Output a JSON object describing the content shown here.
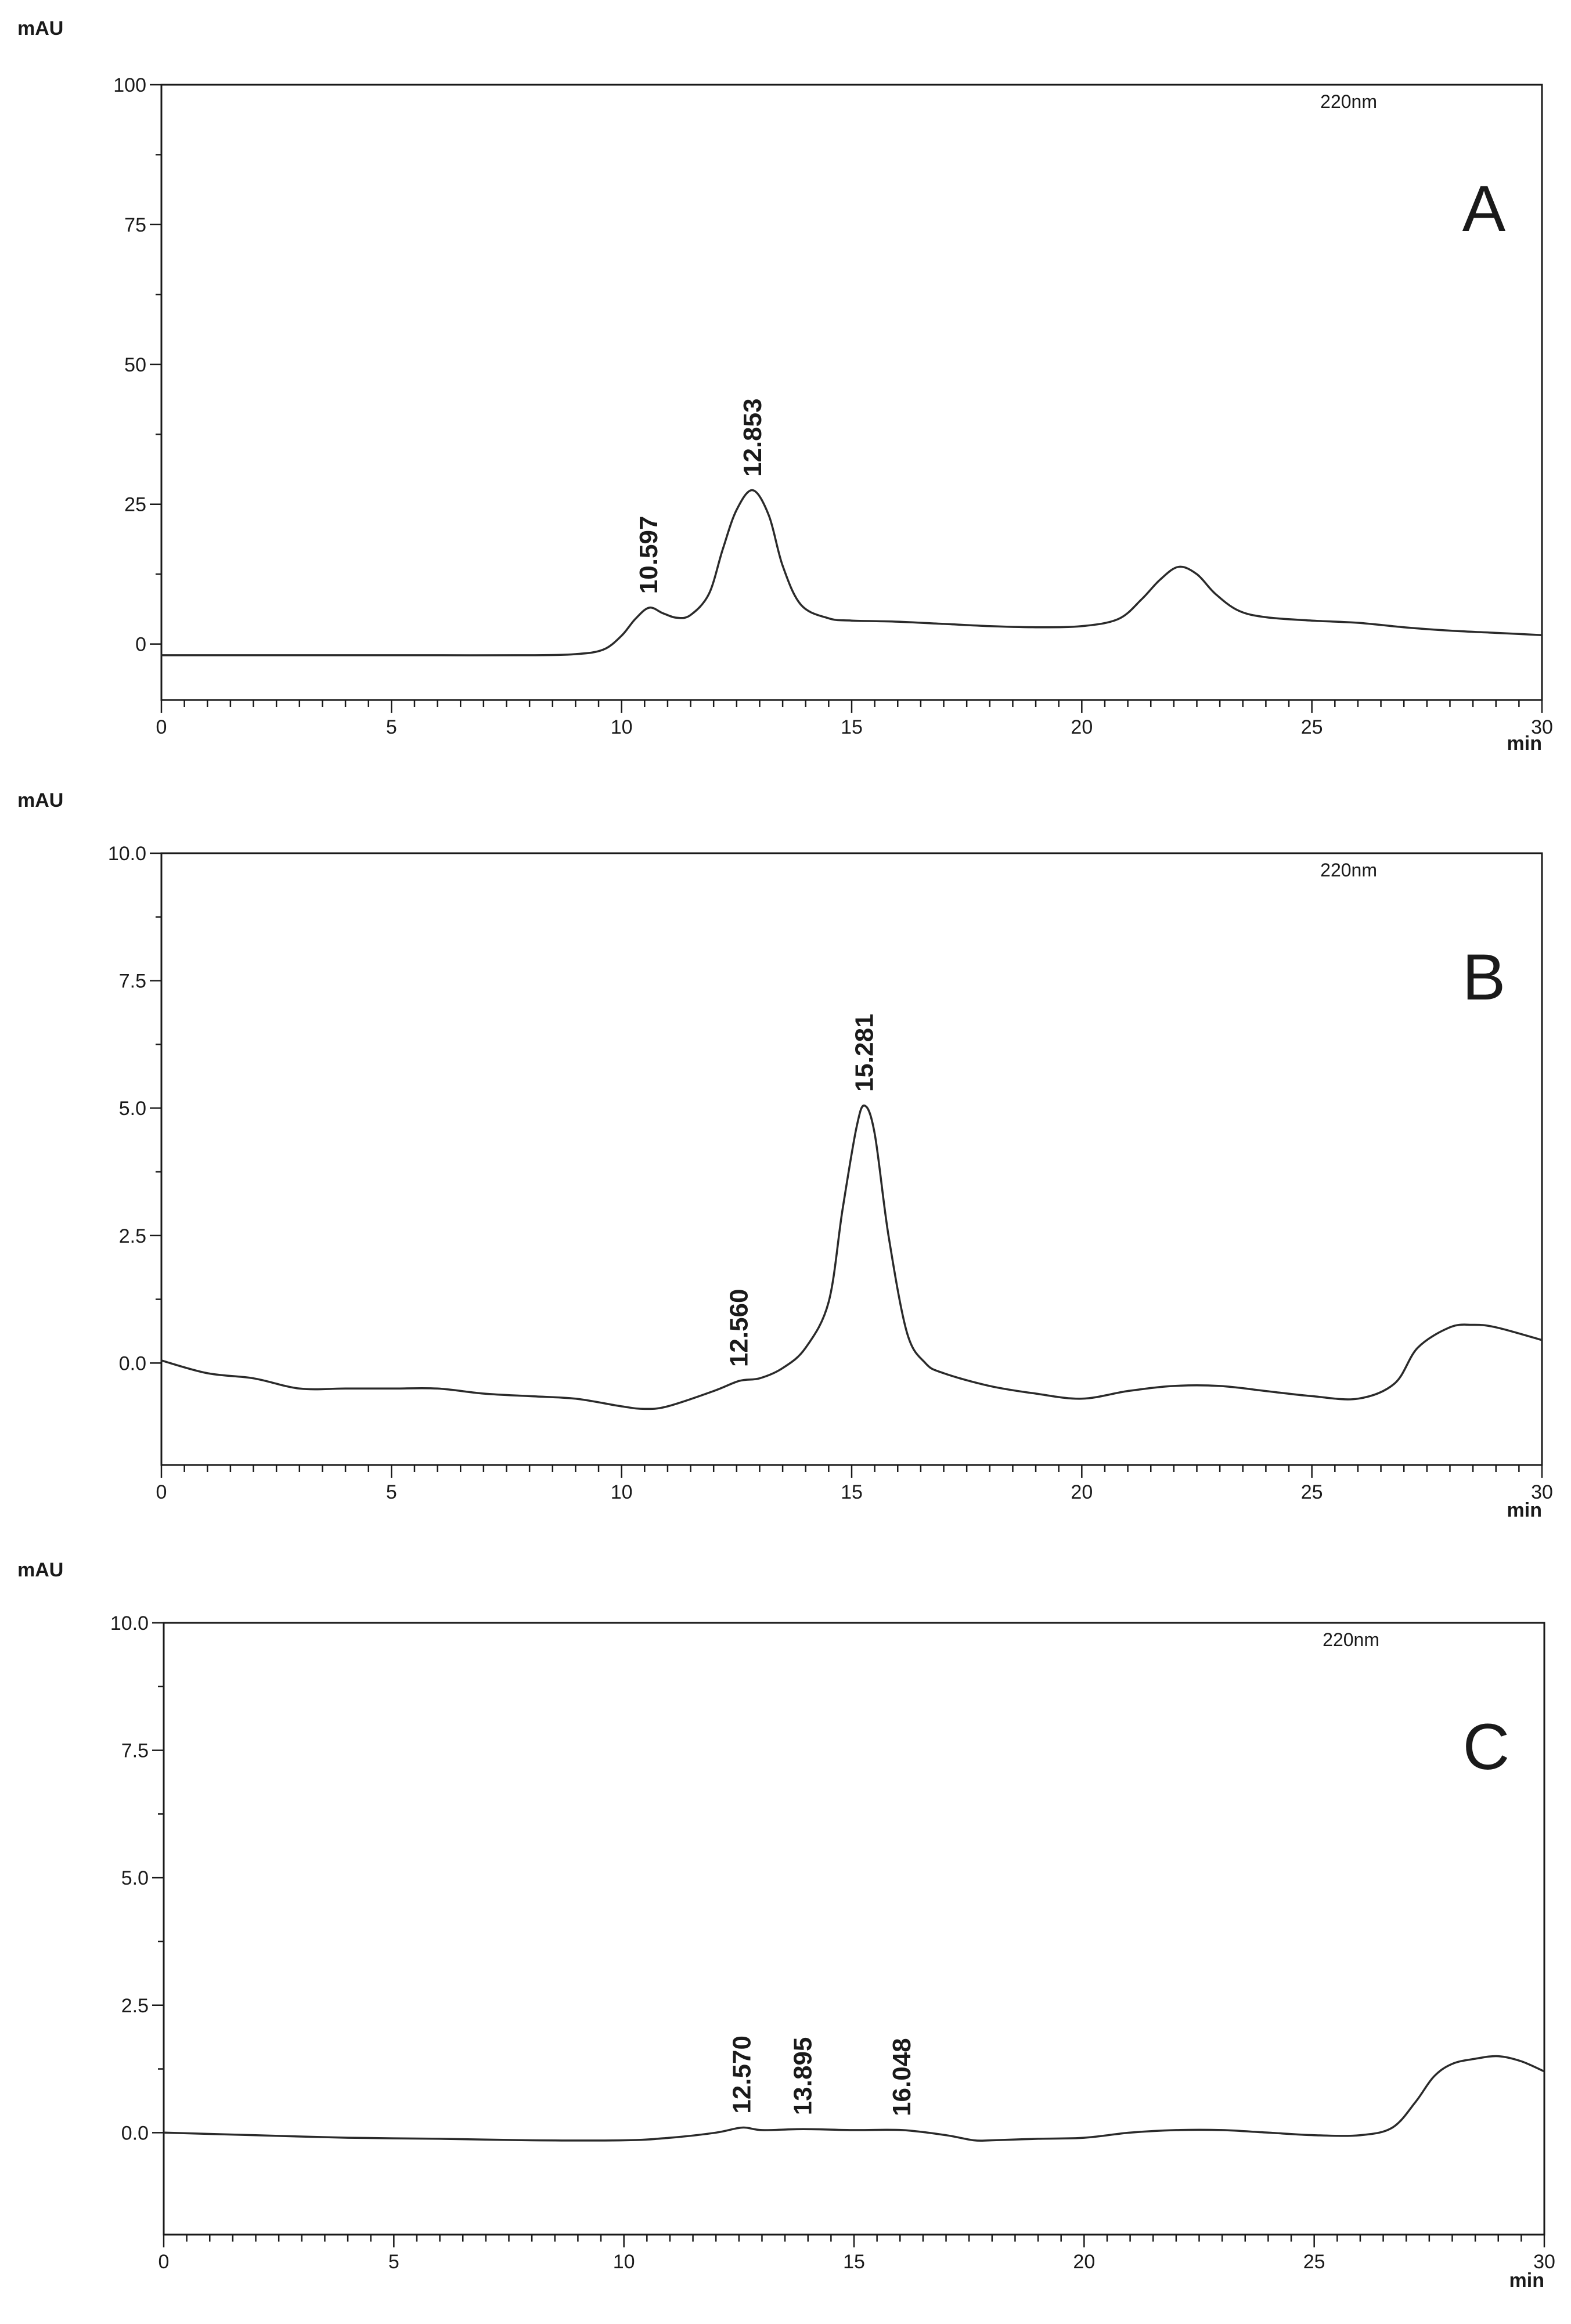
{
  "colors": {
    "axis": "#1a1a1a",
    "trace": "#2a2a2a",
    "background": "#ffffff"
  },
  "chart_data": [
    {
      "type": "line",
      "panel_label": "A",
      "ylabel": "mAU",
      "xlabel": "min",
      "wavelength": "220nm",
      "xlim": [
        0,
        30
      ],
      "ylim": [
        -10,
        100
      ],
      "xticks": [
        0,
        5,
        10,
        15,
        20,
        25,
        30
      ],
      "yticks": [
        0,
        25,
        50,
        75,
        100
      ],
      "x": [
        0,
        2,
        4,
        6,
        8,
        9,
        9.6,
        10,
        10.3,
        10.6,
        10.9,
        11.2,
        11.5,
        11.9,
        12.2,
        12.5,
        12.85,
        13.2,
        13.5,
        13.9,
        14.5,
        15,
        16,
        17,
        18,
        19,
        20,
        20.8,
        21.3,
        21.7,
        22.1,
        22.5,
        22.9,
        23.4,
        24,
        25,
        26,
        27,
        28,
        29,
        30
      ],
      "values": [
        -2,
        -2,
        -2,
        -2,
        -2,
        -1.8,
        -1,
        1.5,
        4.5,
        6.5,
        5.5,
        4.7,
        5.2,
        9,
        17,
        24,
        27.5,
        23,
        14,
        7,
        4.6,
        4.2,
        4,
        3.6,
        3.2,
        3,
        3.2,
        4.5,
        8,
        11.5,
        13.8,
        12.5,
        9,
        6,
        4.8,
        4.2,
        3.8,
        3,
        2.4,
        2,
        1.6
      ],
      "peak_labels": [
        {
          "x": 10.597,
          "text": "10.597"
        },
        {
          "x": 12.853,
          "text": "12.853"
        }
      ]
    },
    {
      "type": "line",
      "panel_label": "B",
      "ylabel": "mAU",
      "xlabel": "min",
      "wavelength": "220nm",
      "xlim": [
        0,
        30
      ],
      "ylim": [
        -2,
        10
      ],
      "xticks": [
        0,
        5,
        10,
        15,
        20,
        25,
        30
      ],
      "yticks": [
        0.0,
        2.5,
        5.0,
        7.5,
        10.0
      ],
      "x": [
        0,
        1,
        2,
        3,
        4,
        5,
        6,
        7,
        8,
        9,
        10,
        10.5,
        11,
        12,
        12.56,
        13,
        13.5,
        14,
        14.5,
        14.8,
        15.1,
        15.28,
        15.5,
        15.8,
        16.2,
        16.6,
        17,
        18,
        19,
        20,
        21,
        22,
        23,
        24,
        25,
        26,
        26.8,
        27.3,
        28,
        28.5,
        29,
        30
      ],
      "values": [
        0.05,
        -0.2,
        -0.3,
        -0.5,
        -0.5,
        -0.5,
        -0.5,
        -0.6,
        -0.65,
        -0.7,
        -0.85,
        -0.9,
        -0.85,
        -0.55,
        -0.35,
        -0.3,
        -0.1,
        0.3,
        1.2,
        3.0,
        4.6,
        5.05,
        4.5,
        2.5,
        0.6,
        0,
        -0.2,
        -0.45,
        -0.6,
        -0.7,
        -0.55,
        -0.45,
        -0.45,
        -0.55,
        -0.65,
        -0.7,
        -0.4,
        0.3,
        0.7,
        0.75,
        0.7,
        0.45
      ],
      "peak_labels": [
        {
          "x": 12.56,
          "text": "12.560"
        },
        {
          "x": 15.281,
          "text": "15.281"
        }
      ]
    },
    {
      "type": "line",
      "panel_label": "C",
      "ylabel": "mAU",
      "xlabel": "min",
      "wavelength": "220nm",
      "xlim": [
        0,
        30
      ],
      "ylim": [
        -2,
        10
      ],
      "xticks": [
        0,
        5,
        10,
        15,
        20,
        25,
        30
      ],
      "yticks": [
        0.0,
        2.5,
        5.0,
        7.5,
        10.0
      ],
      "x": [
        0,
        2,
        4,
        6,
        8,
        10,
        11,
        12,
        12.57,
        13,
        13.9,
        15,
        16.05,
        17,
        17.6,
        18,
        19,
        20,
        21,
        22,
        23,
        24,
        25,
        26,
        26.7,
        27.2,
        27.6,
        28,
        28.5,
        29,
        29.5,
        30
      ],
      "values": [
        0,
        -0.05,
        -0.1,
        -0.12,
        -0.15,
        -0.15,
        -0.1,
        0,
        0.1,
        0.05,
        0.07,
        0.05,
        0.05,
        -0.05,
        -0.15,
        -0.15,
        -0.12,
        -0.1,
        0,
        0.05,
        0.05,
        0,
        -0.05,
        -0.05,
        0.1,
        0.6,
        1.1,
        1.35,
        1.45,
        1.5,
        1.4,
        1.2
      ],
      "peak_labels": [
        {
          "x": 12.57,
          "text": "12.570"
        },
        {
          "x": 13.895,
          "text": "13.895"
        },
        {
          "x": 16.048,
          "text": "16.048"
        }
      ]
    }
  ]
}
